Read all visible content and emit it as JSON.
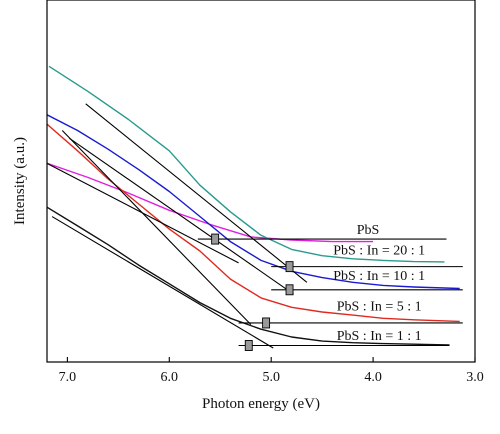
{
  "chart_data": {
    "type": "line",
    "title": "",
    "xlabel": "Photon energy (eV)",
    "ylabel": "Intensity (a.u.)",
    "xlim": [
      7.2,
      3.0
    ],
    "x_reversed": true,
    "ylim": [
      0,
      10
    ],
    "y_ticks_shown": false,
    "x_ticks": [
      7.0,
      6.0,
      5.0,
      4.0,
      3.0
    ],
    "x_tick_labels": [
      "7.0",
      "6.0",
      "5.0",
      "4.0",
      "3.0"
    ],
    "grid": false,
    "legend": "none",
    "series": [
      {
        "name": "PbS",
        "color": "#e020e0",
        "label_position": [
          4.05,
          3.65
        ],
        "x": [
          7.2,
          6.8,
          6.4,
          6.0,
          5.6,
          5.2,
          4.8,
          4.4,
          4.0
        ],
        "y": [
          5.9,
          5.45,
          4.95,
          4.4,
          3.95,
          3.55,
          3.45,
          3.4,
          3.4
        ],
        "tangent": [
          [
            7.2,
            5.9
          ],
          [
            5.32,
            2.72
          ]
        ],
        "baseline": [
          [
            5.72,
            3.48
          ],
          [
            3.28,
            3.48
          ]
        ],
        "onset_marker": [
          5.55,
          3.48
        ]
      },
      {
        "name": "PbS : In = 20 : 1",
        "color": "#2a9a8e",
        "label_position": [
          3.94,
          2.98
        ],
        "x": [
          7.18,
          6.8,
          6.4,
          6.0,
          5.7,
          5.4,
          5.1,
          4.8,
          4.5,
          4.2,
          3.9,
          3.6,
          3.3
        ],
        "y": [
          9.0,
          8.2,
          7.3,
          6.3,
          5.2,
          4.35,
          3.6,
          3.15,
          2.95,
          2.85,
          2.8,
          2.76,
          2.75
        ],
        "tangent": [
          [
            6.82,
            7.8
          ],
          [
            4.65,
            2.1
          ]
        ],
        "baseline": [
          [
            5.0,
            2.6
          ],
          [
            3.12,
            2.6
          ]
        ],
        "onset_marker": [
          4.82,
          2.6
        ]
      },
      {
        "name": "PbS : In = 10 : 1",
        "color": "#1a1ad0",
        "label_position": [
          3.94,
          2.18
        ],
        "x": [
          7.2,
          6.9,
          6.6,
          6.3,
          6.0,
          5.7,
          5.4,
          5.1,
          4.8,
          4.5,
          4.2,
          3.9,
          3.6,
          3.15
        ],
        "y": [
          7.45,
          6.95,
          6.35,
          5.7,
          5.0,
          4.2,
          3.4,
          2.8,
          2.45,
          2.25,
          2.1,
          2.0,
          1.95,
          1.9
        ],
        "tangent": [
          [
            6.98,
            6.7
          ],
          [
            4.78,
            1.72
          ]
        ],
        "baseline": [
          [
            5.0,
            1.86
          ],
          [
            3.12,
            1.86
          ]
        ],
        "onset_marker": [
          4.82,
          1.86
        ]
      },
      {
        "name": "PbS : In = 5 : 1",
        "color": "#e02a20",
        "label_position": [
          3.94,
          1.2
        ],
        "x": [
          7.2,
          6.9,
          6.6,
          6.3,
          6.0,
          5.7,
          5.4,
          5.1,
          4.8,
          4.5,
          4.2,
          3.9,
          3.6,
          3.15
        ],
        "y": [
          7.15,
          6.3,
          5.4,
          4.6,
          3.8,
          3.1,
          2.2,
          1.6,
          1.3,
          1.15,
          1.05,
          0.95,
          0.9,
          0.85
        ],
        "tangent": [
          [
            7.05,
            6.95
          ],
          [
            5.2,
            0.75
          ]
        ],
        "baseline": [
          [
            5.32,
            0.8
          ],
          [
            3.12,
            0.8
          ]
        ],
        "onset_marker": [
          5.05,
          0.8
        ]
      },
      {
        "name": "PbS : In = 1 : 1",
        "color": "#111111",
        "label_position": [
          3.94,
          0.26
        ],
        "x": [
          7.2,
          6.9,
          6.6,
          6.3,
          6.0,
          5.7,
          5.4,
          5.1,
          4.8,
          4.5,
          4.2,
          3.9,
          3.6,
          3.25
        ],
        "y": [
          4.5,
          3.9,
          3.3,
          2.65,
          2.05,
          1.45,
          0.95,
          0.6,
          0.35,
          0.22,
          0.17,
          0.14,
          0.12,
          0.1
        ],
        "tangent": [
          [
            7.15,
            4.2
          ],
          [
            4.98,
            0.0
          ]
        ],
        "baseline": [
          [
            5.32,
            0.08
          ],
          [
            3.25,
            0.08
          ]
        ],
        "onset_marker": [
          5.22,
          0.08
        ]
      }
    ]
  }
}
